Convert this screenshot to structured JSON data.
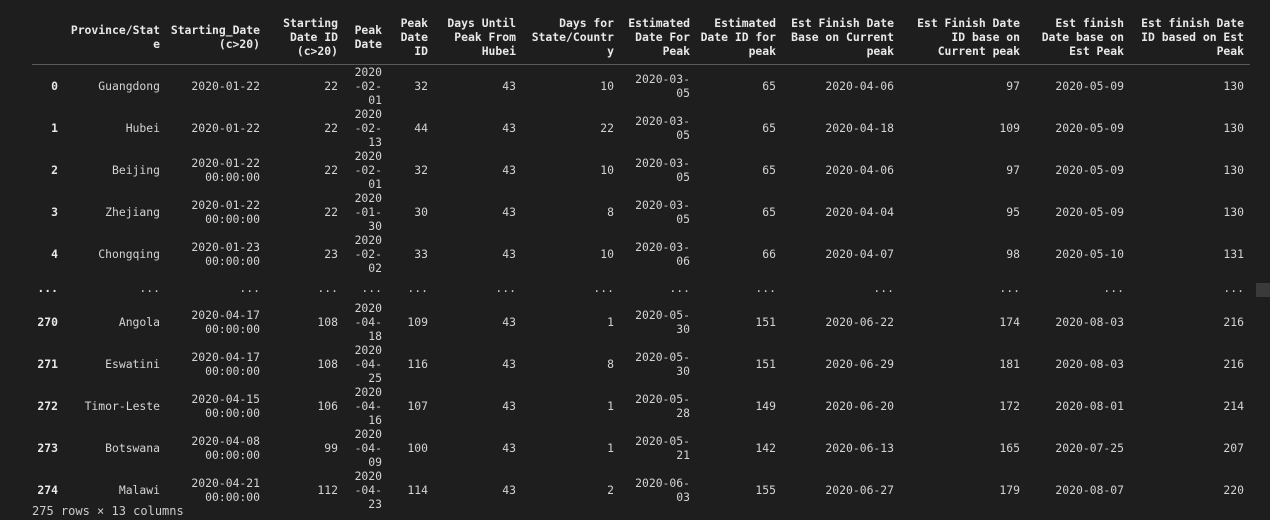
{
  "table": {
    "columns": [
      "",
      "Province/State",
      "Starting_Date (c>20)",
      "Starting Date ID (c>20)",
      "Peak Date",
      "Peak Date ID",
      "Days Until Peak From Hubei",
      "Days for State/Country",
      "Estimated Date For Peak",
      "Estimated Date ID for peak",
      "Est Finish Date Base on Current peak",
      "Est Finish Date ID base on Current peak",
      "Est finish Date base on Est Peak",
      "Est finish Date ID based on Est Peak"
    ],
    "rows": [
      [
        "0",
        "Guangdong",
        "2020-01-22",
        "22",
        "2020-02-01",
        "32",
        "43",
        "10",
        "2020-03-05",
        "65",
        "2020-04-06",
        "97",
        "2020-05-09",
        "130"
      ],
      [
        "1",
        "Hubei",
        "2020-01-22",
        "22",
        "2020-02-13",
        "44",
        "43",
        "22",
        "2020-03-05",
        "65",
        "2020-04-18",
        "109",
        "2020-05-09",
        "130"
      ],
      [
        "2",
        "Beijing",
        "2020-01-22 00:00:00",
        "22",
        "2020-02-01",
        "32",
        "43",
        "10",
        "2020-03-05",
        "65",
        "2020-04-06",
        "97",
        "2020-05-09",
        "130"
      ],
      [
        "3",
        "Zhejiang",
        "2020-01-22 00:00:00",
        "22",
        "2020-01-30",
        "30",
        "43",
        "8",
        "2020-03-05",
        "65",
        "2020-04-04",
        "95",
        "2020-05-09",
        "130"
      ],
      [
        "4",
        "Chongqing",
        "2020-01-23 00:00:00",
        "23",
        "2020-02-02",
        "33",
        "43",
        "10",
        "2020-03-06",
        "66",
        "2020-04-07",
        "98",
        "2020-05-10",
        "131"
      ],
      [
        "...",
        "...",
        "...",
        "...",
        "...",
        "...",
        "...",
        "...",
        "...",
        "...",
        "...",
        "...",
        "...",
        "..."
      ],
      [
        "270",
        "Angola",
        "2020-04-17 00:00:00",
        "108",
        "2020-04-18",
        "109",
        "43",
        "1",
        "2020-05-30",
        "151",
        "2020-06-22",
        "174",
        "2020-08-03",
        "216"
      ],
      [
        "271",
        "Eswatini",
        "2020-04-17 00:00:00",
        "108",
        "2020-04-25",
        "116",
        "43",
        "8",
        "2020-05-30",
        "151",
        "2020-06-29",
        "181",
        "2020-08-03",
        "216"
      ],
      [
        "272",
        "Timor-Leste",
        "2020-04-15 00:00:00",
        "106",
        "2020-04-16",
        "107",
        "43",
        "1",
        "2020-05-28",
        "149",
        "2020-06-20",
        "172",
        "2020-08-01",
        "214"
      ],
      [
        "273",
        "Botswana",
        "2020-04-08 00:00:00",
        "99",
        "2020-04-09",
        "100",
        "43",
        "1",
        "2020-05-21",
        "142",
        "2020-06-13",
        "165",
        "2020-07-25",
        "207"
      ],
      [
        "274",
        "Malawi",
        "2020-04-21 00:00:00",
        "112",
        "2020-04-23",
        "114",
        "43",
        "2",
        "2020-06-03",
        "155",
        "2020-06-27",
        "179",
        "2020-08-07",
        "220"
      ]
    ]
  },
  "footer": {
    "shape_text": "275 rows × 13 columns"
  },
  "colors": {
    "background": "#1e1e1e",
    "text": "#d4d4d4",
    "header_border": "#5a5a5a"
  }
}
